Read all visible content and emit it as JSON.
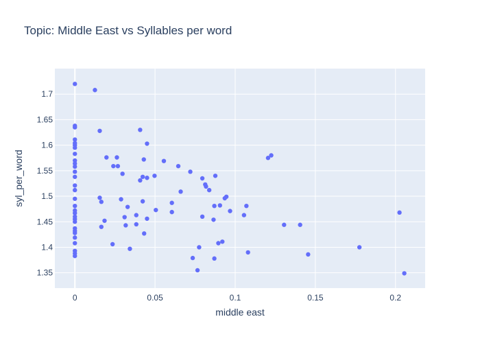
{
  "chart_data": {
    "type": "scatter",
    "title": "Topic: Middle East vs Syllables per word",
    "xlabel": "middle east",
    "ylabel": "syl_per_word",
    "xlim": [
      -0.0125,
      0.2185
    ],
    "ylim": [
      1.32,
      1.75
    ],
    "x_ticks": [
      0,
      0.05,
      0.1,
      0.15,
      0.2
    ],
    "x_tick_labels": [
      "0",
      "0.05",
      "0.1",
      "0.15",
      "0.2"
    ],
    "y_ticks": [
      1.35,
      1.4,
      1.45,
      1.5,
      1.55,
      1.6,
      1.65,
      1.7
    ],
    "y_tick_labels": [
      "1.35",
      "1.4",
      "1.45",
      "1.5",
      "1.55",
      "1.6",
      "1.65",
      "1.7"
    ],
    "grid": true,
    "colors": {
      "marker": "#636efa",
      "plot_bg": "#e5ecf6",
      "text": "#2a3f5f"
    },
    "points": [
      [
        0,
        1.72
      ],
      [
        0,
        1.638
      ],
      [
        0,
        1.635
      ],
      [
        0,
        1.611
      ],
      [
        0,
        1.604
      ],
      [
        0,
        1.6
      ],
      [
        0,
        1.595
      ],
      [
        0,
        1.583
      ],
      [
        0,
        1.57
      ],
      [
        0,
        1.564
      ],
      [
        0,
        1.558
      ],
      [
        0,
        1.548
      ],
      [
        0,
        1.538
      ],
      [
        0,
        1.521
      ],
      [
        0,
        1.512
      ],
      [
        0,
        1.495
      ],
      [
        0,
        1.481
      ],
      [
        0,
        1.472
      ],
      [
        0,
        1.467
      ],
      [
        0,
        1.46
      ],
      [
        0,
        1.455
      ],
      [
        0,
        1.45
      ],
      [
        0,
        1.437
      ],
      [
        0,
        1.432
      ],
      [
        0,
        1.428
      ],
      [
        0,
        1.419
      ],
      [
        0,
        1.408
      ],
      [
        0,
        1.393
      ],
      [
        0,
        1.388
      ],
      [
        0,
        1.383
      ],
      [
        0.0125,
        1.708
      ],
      [
        0.0155,
        1.628
      ],
      [
        0.0155,
        1.497
      ],
      [
        0.0165,
        1.489
      ],
      [
        0.0165,
        1.44
      ],
      [
        0.0185,
        1.452
      ],
      [
        0.0197,
        1.576
      ],
      [
        0.0235,
        1.406
      ],
      [
        0.024,
        1.559
      ],
      [
        0.0262,
        1.576
      ],
      [
        0.0268,
        1.559
      ],
      [
        0.0288,
        1.494
      ],
      [
        0.0297,
        1.544
      ],
      [
        0.031,
        1.459
      ],
      [
        0.0317,
        1.443
      ],
      [
        0.0329,
        1.479
      ],
      [
        0.0343,
        1.397
      ],
      [
        0.0383,
        1.463
      ],
      [
        0.0383,
        1.445
      ],
      [
        0.0407,
        1.63
      ],
      [
        0.0407,
        1.531
      ],
      [
        0.0423,
        1.538
      ],
      [
        0.0423,
        1.49
      ],
      [
        0.043,
        1.572
      ],
      [
        0.0432,
        1.427
      ],
      [
        0.045,
        1.603
      ],
      [
        0.045,
        1.536
      ],
      [
        0.045,
        1.456
      ],
      [
        0.0497,
        1.54
      ],
      [
        0.0505,
        1.473
      ],
      [
        0.0555,
        1.569
      ],
      [
        0.0605,
        1.487
      ],
      [
        0.0605,
        1.469
      ],
      [
        0.0645,
        1.559
      ],
      [
        0.066,
        1.509
      ],
      [
        0.072,
        1.548
      ],
      [
        0.0735,
        1.379
      ],
      [
        0.0765,
        1.355
      ],
      [
        0.0775,
        1.4
      ],
      [
        0.0795,
        1.535
      ],
      [
        0.0795,
        1.46
      ],
      [
        0.0813,
        1.523
      ],
      [
        0.0818,
        1.519
      ],
      [
        0.0838,
        1.512
      ],
      [
        0.0865,
        1.454
      ],
      [
        0.087,
        1.481
      ],
      [
        0.087,
        1.378
      ],
      [
        0.0876,
        1.54
      ],
      [
        0.0895,
        1.408
      ],
      [
        0.0905,
        1.482
      ],
      [
        0.092,
        1.411
      ],
      [
        0.0935,
        1.496
      ],
      [
        0.0945,
        1.499
      ],
      [
        0.0968,
        1.471
      ],
      [
        0.1055,
        1.463
      ],
      [
        0.107,
        1.481
      ],
      [
        0.108,
        1.39
      ],
      [
        0.1205,
        1.575
      ],
      [
        0.1225,
        1.58
      ],
      [
        0.1305,
        1.444
      ],
      [
        0.1405,
        1.444
      ],
      [
        0.1455,
        1.386
      ],
      [
        0.1775,
        1.4
      ],
      [
        0.2025,
        1.468
      ],
      [
        0.2055,
        1.349
      ]
    ]
  }
}
